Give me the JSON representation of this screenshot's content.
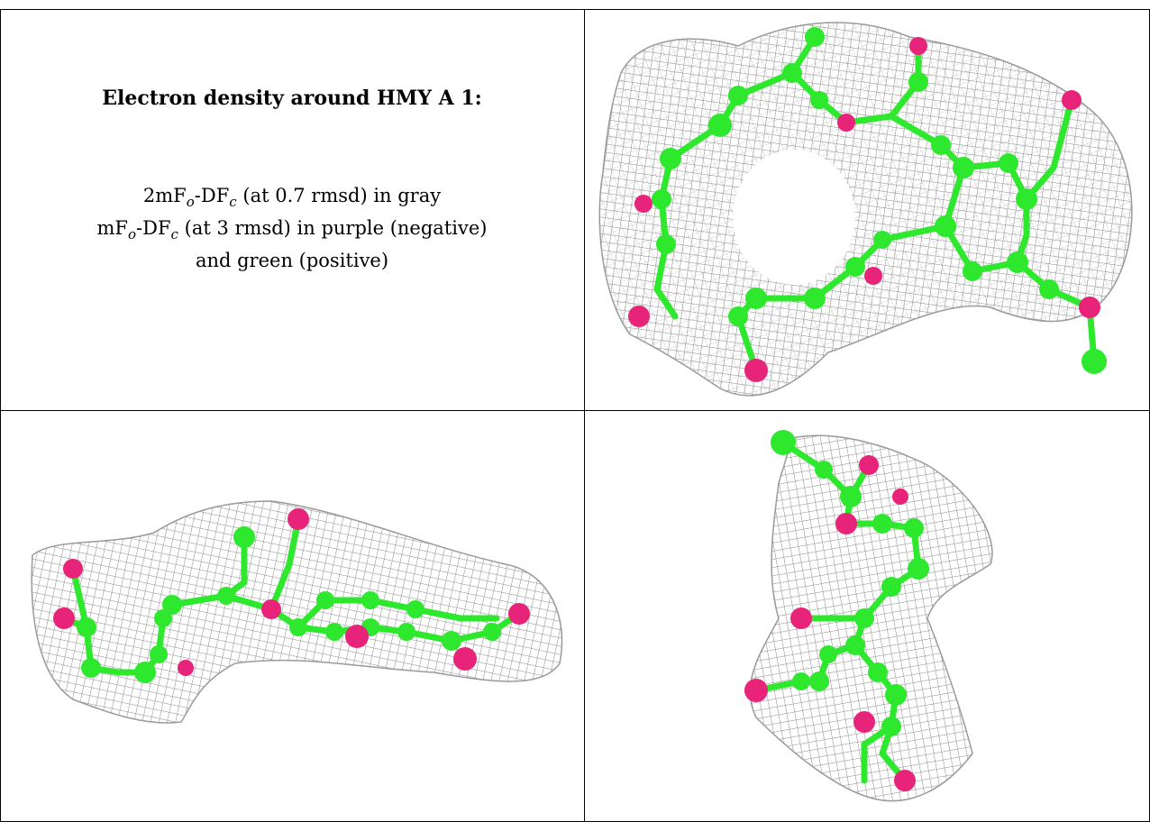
{
  "caption": {
    "title": "Electron density around HMY A 1:",
    "line1_prefix": "2mF",
    "line1_sub1": "o",
    "line1_mid": "-DF",
    "line1_sub2": "c",
    "line1_suffix": " (at 0.7 rmsd) in gray",
    "line2_prefix": "mF",
    "line2_sub1": "o",
    "line2_mid": "-DF",
    "line2_sub2": "c",
    "line2_suffix": " (at 3 rmsd) in purple (negative)",
    "line3": "and green (positive)"
  },
  "colors": {
    "carbon": "#2ee82e",
    "oxygen": "#e8237a",
    "mesh": "#8a8a8a",
    "border": "#000000"
  },
  "panels": [
    {
      "view": "top-right",
      "content": "molecule-face-view"
    },
    {
      "view": "bottom-left",
      "content": "molecule-side-view"
    },
    {
      "view": "bottom-right",
      "content": "molecule-end-view"
    }
  ]
}
